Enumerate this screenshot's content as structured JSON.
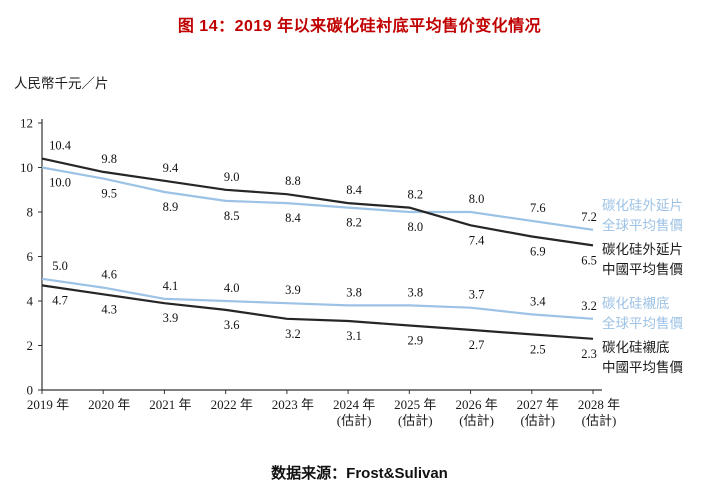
{
  "title": "图 14：2019 年以来碳化硅衬底平均售价变化情况",
  "source": "数据来源：Frost&Sulivan",
  "colors": {
    "title": "#c00000",
    "series_blue": "#9cc2e5",
    "series_dark": "#262626",
    "axis": "#333333"
  },
  "chart_data": {
    "type": "line",
    "title": "图 14：2019 年以来碳化硅衬底平均售价变化情况",
    "ylabel": "人民幣千元／片",
    "xlabel": "",
    "ylim": [
      0,
      12
    ],
    "yticks": [
      0,
      2,
      4,
      6,
      8,
      10,
      12
    ],
    "grid": false,
    "legend_position": "right",
    "categories": [
      {
        "label": "2019 年",
        "sub": ""
      },
      {
        "label": "2020 年",
        "sub": ""
      },
      {
        "label": "2021 年",
        "sub": ""
      },
      {
        "label": "2022 年",
        "sub": ""
      },
      {
        "label": "2023 年",
        "sub": ""
      },
      {
        "label": "2024 年",
        "sub": "(估計)"
      },
      {
        "label": "2025 年",
        "sub": "(估計)"
      },
      {
        "label": "2026 年",
        "sub": "(估計)"
      },
      {
        "label": "2027 年",
        "sub": "(估計)"
      },
      {
        "label": "2028 年",
        "sub": "(估計)"
      }
    ],
    "series": [
      {
        "name": "碳化硅外延片全球平均售價",
        "color": "#9cc2e5",
        "pair": 1,
        "values": [
          10.0,
          9.5,
          8.9,
          8.5,
          8.4,
          8.2,
          8.0,
          8.0,
          7.6,
          7.2
        ]
      },
      {
        "name": "碳化硅外延片中國平均售價",
        "color": "#262626",
        "pair": 0,
        "values": [
          10.4,
          9.8,
          9.4,
          9.0,
          8.8,
          8.4,
          8.2,
          7.4,
          6.9,
          6.5
        ]
      },
      {
        "name": "碳化硅襯底全球平均售價",
        "color": "#9cc2e5",
        "pair": 3,
        "values": [
          5.0,
          4.6,
          4.1,
          4.0,
          3.9,
          3.8,
          3.8,
          3.7,
          3.4,
          3.2
        ]
      },
      {
        "name": "碳化硅襯底中國平均售價",
        "color": "#262626",
        "pair": 2,
        "values": [
          4.7,
          4.3,
          3.9,
          3.6,
          3.2,
          3.1,
          2.9,
          2.7,
          2.5,
          2.3
        ]
      }
    ]
  },
  "legend": [
    {
      "line1": "碳化硅外延片",
      "line2": "全球平均售價",
      "color": "#9cc2e5"
    },
    {
      "line1": "碳化硅外延片",
      "line2": "中國平均售價",
      "color": "#1a1a1a"
    },
    {
      "line1": "碳化硅襯底",
      "line2": "全球平均售價",
      "color": "#9cc2e5"
    },
    {
      "line1": "碳化硅襯底",
      "line2": "中國平均售價",
      "color": "#1a1a1a"
    }
  ]
}
